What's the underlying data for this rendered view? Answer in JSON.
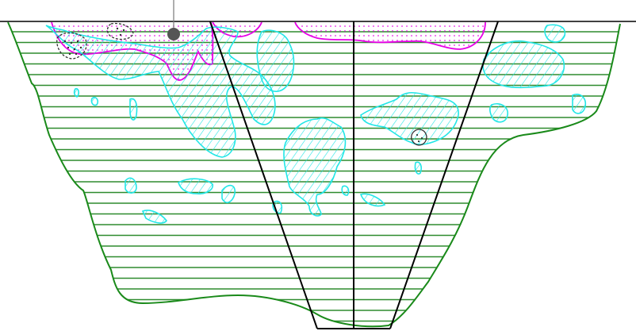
{
  "colors": {
    "background": "#ffffff",
    "outline": "#1a8a1a",
    "hatch": "#2e8b2e",
    "ice": "#22e6e6",
    "magenta": "#e600e6",
    "black": "#000000",
    "marker": "#555555",
    "dots": "#333333"
  },
  "hatch_spacing_px": 13.5,
  "markers": [
    {
      "name": "surface-marker-pin",
      "icon": "filled-circle"
    }
  ]
}
